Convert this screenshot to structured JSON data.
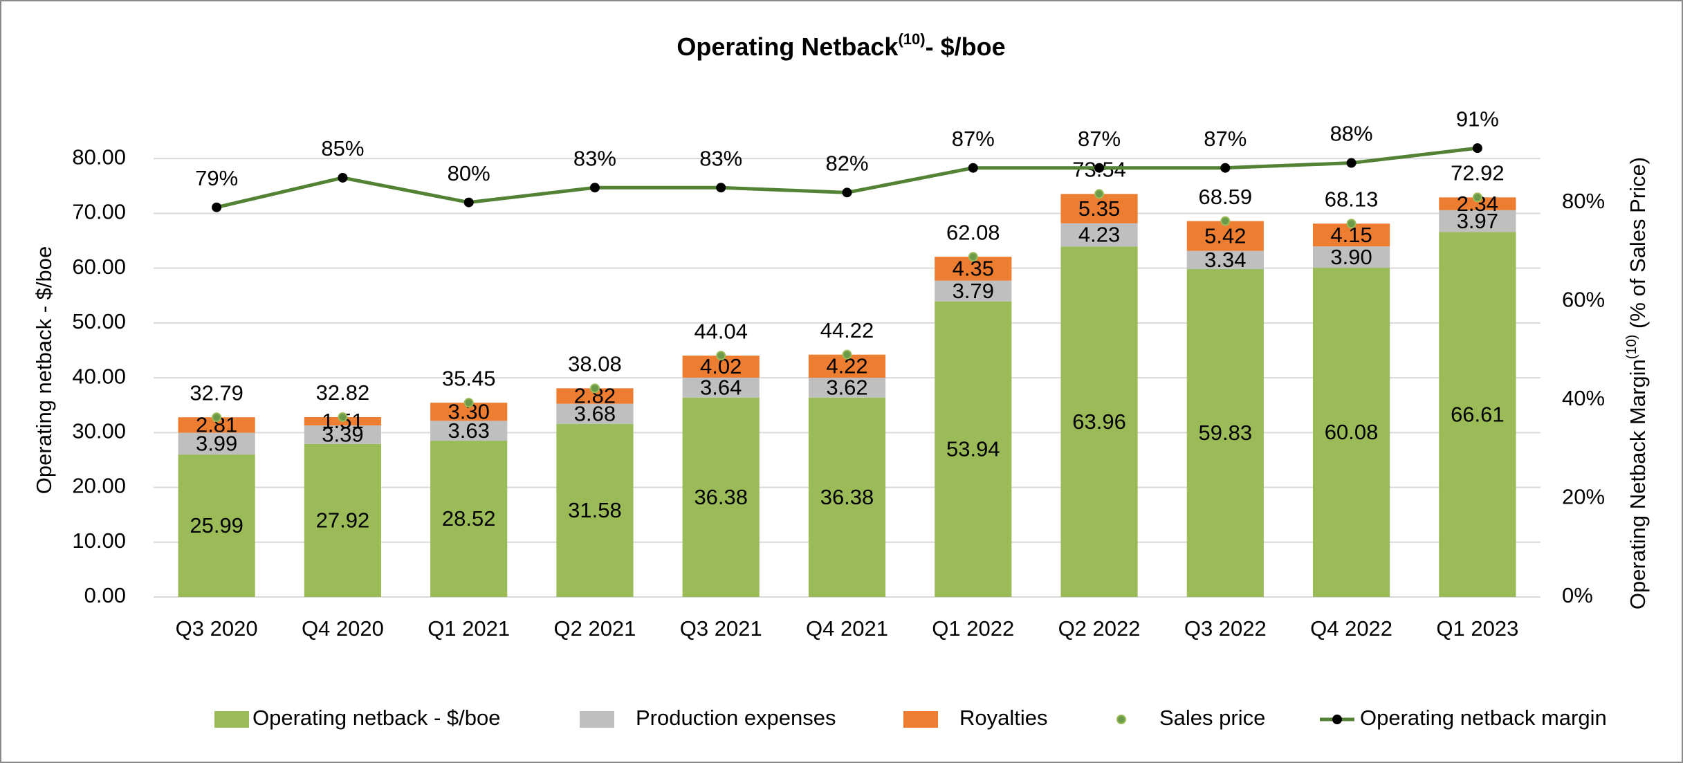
{
  "chart_data": {
    "type": "bar",
    "stacked": true,
    "title": {
      "text": "Operating Netback",
      "sup": "(10)",
      "rest": "- $/boe"
    },
    "ylabel": "Operating netback - $/boe",
    "y2label": {
      "text": "Operating Netback Margin",
      "sup": "(10)",
      "rest": " (% of Sales Price)"
    },
    "categories": [
      "Q3 2020",
      "Q4 2020",
      "Q1 2021",
      "Q2 2021",
      "Q3 2021",
      "Q4 2021",
      "Q1 2022",
      "Q2 2022",
      "Q3 2022",
      "Q4 2022",
      "Q1 2023"
    ],
    "ylim": [
      0,
      90
    ],
    "yticks": [
      {
        "value": 0,
        "label": "0.00"
      },
      {
        "value": 10,
        "label": "10.00"
      },
      {
        "value": 20,
        "label": "20.00"
      },
      {
        "value": 30,
        "label": "30.00"
      },
      {
        "value": 40,
        "label": "40.00"
      },
      {
        "value": 50,
        "label": "50.00"
      },
      {
        "value": 60,
        "label": "60.00"
      },
      {
        "value": 70,
        "label": "70.00"
      },
      {
        "value": 80,
        "label": "80.00"
      }
    ],
    "y2lim": [
      0,
      100
    ],
    "y2ticks": [
      {
        "value": 0,
        "label": "0%"
      },
      {
        "value": 20,
        "label": "20%"
      },
      {
        "value": 40,
        "label": "40%"
      },
      {
        "value": 60,
        "label": "60%"
      },
      {
        "value": 80,
        "label": "80%"
      }
    ],
    "grid": true,
    "legend": "bottom",
    "series": [
      {
        "name": "Operating netback - $/boe",
        "type": "bar",
        "color": "#9bbb59",
        "values": [
          25.99,
          27.92,
          28.52,
          31.58,
          36.38,
          36.38,
          53.94,
          63.96,
          59.83,
          60.08,
          66.61
        ]
      },
      {
        "name": "Production expenses",
        "type": "bar",
        "color": "#bfbfbf",
        "values": [
          3.99,
          3.39,
          3.63,
          3.68,
          3.64,
          3.62,
          3.79,
          4.23,
          3.34,
          3.9,
          3.97
        ],
        "value_labels": [
          "3.99",
          "3.39",
          "3.63",
          "3.68",
          "3.64",
          "3.62",
          "3.79",
          "4.23",
          "3.34",
          "3.90",
          "3.97"
        ]
      },
      {
        "name": "Royalties",
        "type": "bar",
        "color": "#ed7d31",
        "values": [
          2.81,
          1.51,
          3.3,
          2.82,
          4.02,
          4.22,
          4.35,
          5.35,
          5.42,
          4.15,
          2.34
        ],
        "value_labels": [
          "2.81",
          "1.51",
          "3.30",
          "2.82",
          "4.02",
          "4.22",
          "4.35",
          "5.35",
          "5.42",
          "4.15",
          "2.34"
        ]
      },
      {
        "name": "Sales price",
        "type": "scatter",
        "color": "#6a9a4a",
        "values": [
          32.79,
          32.82,
          35.45,
          38.08,
          44.04,
          44.22,
          62.08,
          73.54,
          68.59,
          68.13,
          72.92
        ]
      },
      {
        "name": "Operating netback margin",
        "type": "line",
        "axis": "y2",
        "color": "#548235",
        "values": [
          79,
          85,
          80,
          83,
          83,
          82,
          87,
          87,
          87,
          88,
          91
        ],
        "value_labels": [
          "79%",
          "85%",
          "80%",
          "83%",
          "83%",
          "82%",
          "87%",
          "87%",
          "87%",
          "88%",
          "91%"
        ]
      }
    ]
  }
}
